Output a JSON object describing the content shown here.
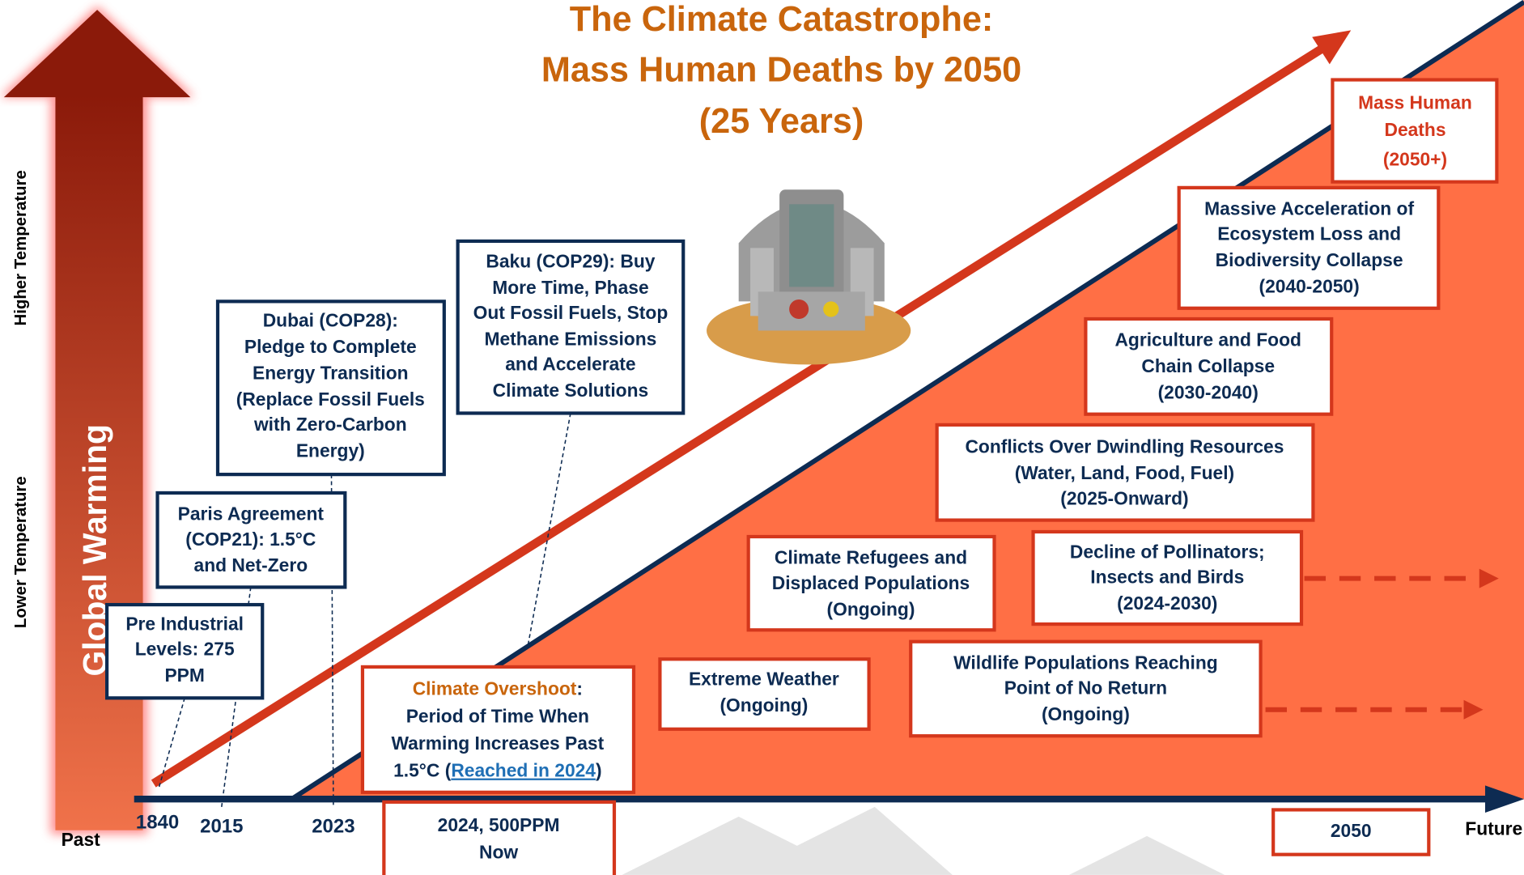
{
  "title": [
    "The Climate Catastrophe:",
    "Mass Human Deaths by 2050",
    "(25 Years)"
  ],
  "vertical_arrow": {
    "label": "Global Warming"
  },
  "y_axis": {
    "top": "Higher Temperature",
    "bottom": "Lower Temperature"
  },
  "x_axis": {
    "start": "Past",
    "end": "Future",
    "markers": [
      "1840",
      "2015",
      "2023"
    ]
  },
  "milestones": [
    {
      "lines": [
        "Pre Industrial",
        "Levels: 275",
        "PPM"
      ]
    },
    {
      "lines": [
        "Paris Agreement",
        "(COP21): 1.5°C",
        "and Net-Zero"
      ]
    },
    {
      "lines": [
        "Dubai (COP28):",
        "Pledge to Complete",
        "Energy Transition",
        "(Replace Fossil Fuels",
        "with Zero-Carbon",
        "Energy)"
      ]
    },
    {
      "lines": [
        "Baku (COP29): Buy",
        "More Time, Phase",
        "Out Fossil Fuels, Stop",
        "Methane Emissions",
        "and Accelerate",
        "Climate Solutions"
      ]
    }
  ],
  "overshoot": {
    "lines": [
      [
        "Climate Overshoot",
        ":"
      ],
      "Period of Time When",
      "Warming  Increases Past",
      [
        "1.5°C (",
        "Reached in 2024",
        ")"
      ]
    ]
  },
  "now": {
    "lines": [
      "2024, 500PPM",
      "Now"
    ]
  },
  "year_2050": {
    "lines": [
      "2050"
    ]
  },
  "impacts": [
    {
      "lines": [
        "Extreme Weather",
        "(Ongoing)"
      ]
    },
    {
      "lines": [
        "Climate Refugees and",
        "Displaced Populations",
        "(Ongoing)"
      ]
    },
    {
      "lines": [
        "Wildlife Populations Reaching",
        "Point of No Return",
        "(Ongoing)"
      ]
    },
    {
      "lines": [
        "Decline of Pollinators;",
        "Insects and Birds",
        "(2024-2030)"
      ]
    },
    {
      "lines": [
        "Conflicts Over Dwindling Resources",
        "(Water, Land, Food, Fuel)",
        "(2025-Onward)"
      ]
    },
    {
      "lines": [
        "Agriculture and Food",
        "Chain Collapse",
        "(2030-2040)"
      ]
    },
    {
      "lines": [
        "Massive Acceleration of",
        "Ecosystem Loss and",
        "Biodiversity Collapse",
        "(2040-2050)"
      ]
    },
    {
      "lines": [
        "Mass Human",
        "Deaths",
        "(2050+)"
      ]
    }
  ]
}
